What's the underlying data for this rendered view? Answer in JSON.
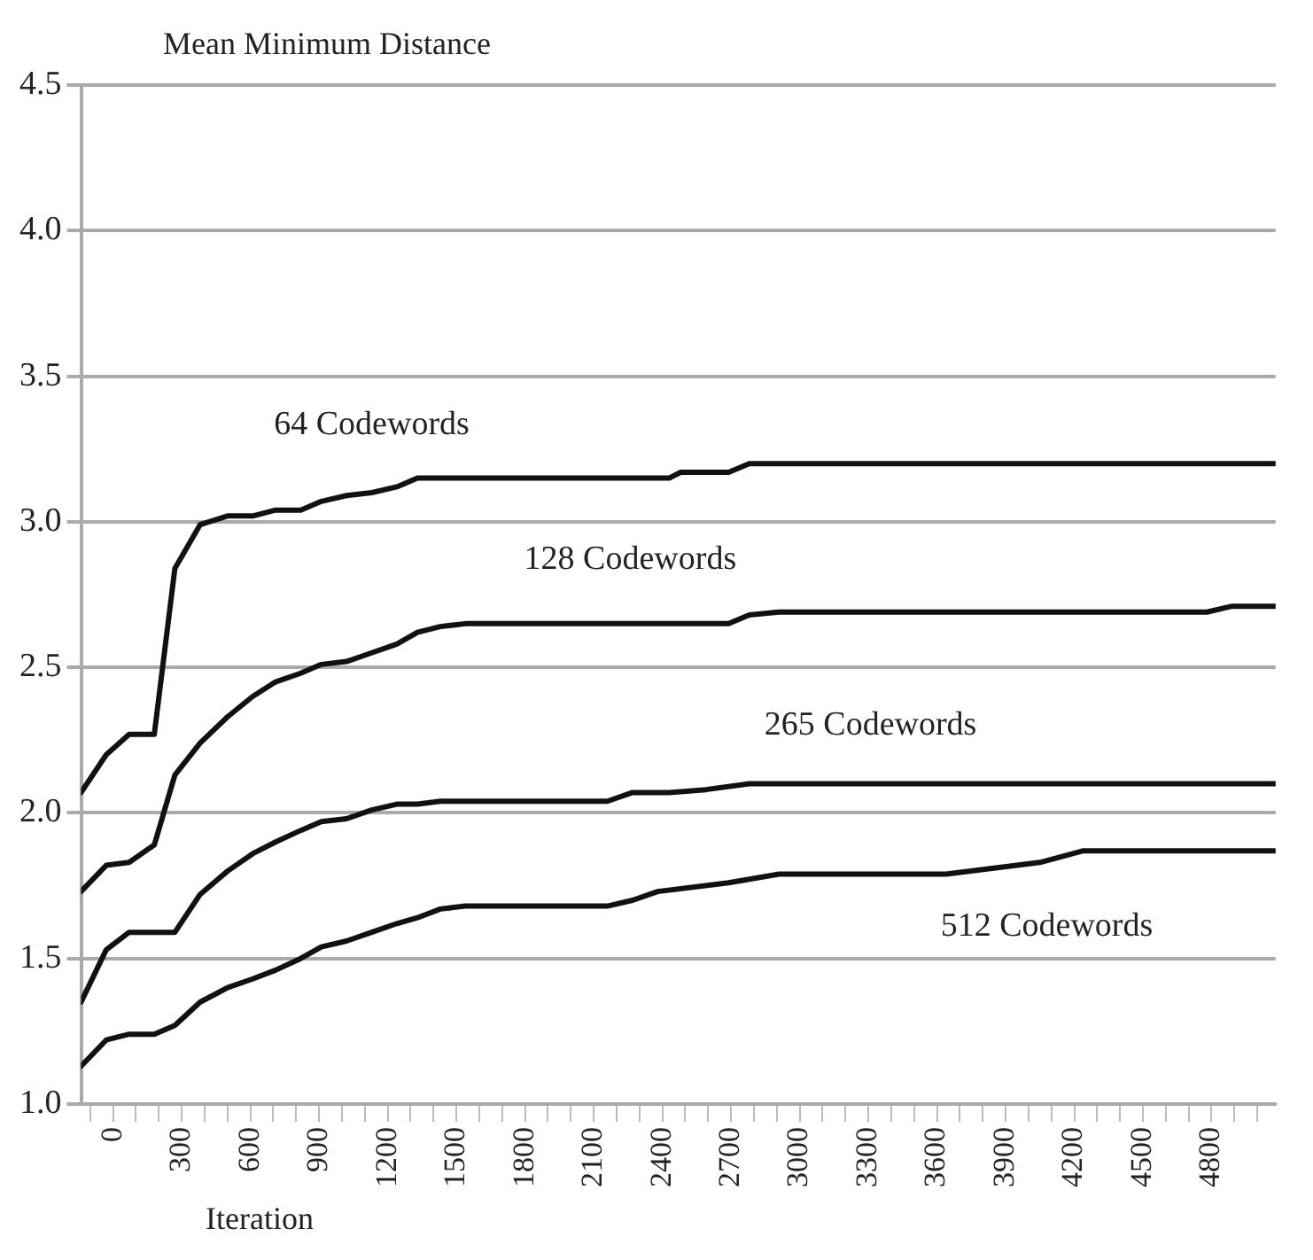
{
  "chart_data": {
    "type": "line",
    "ylabel": "Mean Minimum Distance",
    "xlabel": "Iteration",
    "xlim": [
      -140,
      5080
    ],
    "xticks": [
      {
        "value": -100,
        "label": null
      },
      0,
      {
        "value": 100,
        "label": null
      },
      {
        "value": 200,
        "label": null
      },
      300,
      {
        "value": 400,
        "label": null
      },
      {
        "value": 500,
        "label": null
      },
      600,
      {
        "value": 700,
        "label": null
      },
      {
        "value": 800,
        "label": null
      },
      900,
      {
        "value": 1000,
        "label": null
      },
      {
        "value": 1100,
        "label": null
      },
      1200,
      {
        "value": 1300,
        "label": null
      },
      {
        "value": 1400,
        "label": null
      },
      1500,
      {
        "value": 1600,
        "label": null
      },
      {
        "value": 1700,
        "label": null
      },
      1800,
      {
        "value": 1900,
        "label": null
      },
      {
        "value": 2000,
        "label": null
      },
      2100,
      {
        "value": 2200,
        "label": null
      },
      {
        "value": 2300,
        "label": null
      },
      2400,
      {
        "value": 2500,
        "label": null
      },
      {
        "value": 2600,
        "label": null
      },
      2700,
      {
        "value": 2800,
        "label": null
      },
      {
        "value": 2900,
        "label": null
      },
      3000,
      {
        "value": 3100,
        "label": null
      },
      {
        "value": 3200,
        "label": null
      },
      3300,
      {
        "value": 3400,
        "label": null
      },
      {
        "value": 3500,
        "label": null
      },
      3600,
      {
        "value": 3700,
        "label": null
      },
      {
        "value": 3800,
        "label": null
      },
      3900,
      {
        "value": 4000,
        "label": null
      },
      {
        "value": 4100,
        "label": null
      },
      4200,
      {
        "value": 4300,
        "label": null
      },
      {
        "value": 4400,
        "label": null
      },
      4500,
      {
        "value": 4600,
        "label": null
      },
      {
        "value": 4700,
        "label": null
      },
      4800,
      {
        "value": 4900,
        "label": null
      },
      {
        "value": 5000,
        "label": null
      }
    ],
    "ylim": [
      1.0,
      4.5
    ],
    "yticks": [
      {
        "value": 1,
        "label": "1.0"
      },
      1.5,
      {
        "value": 2,
        "label": "2.0"
      },
      2.5,
      {
        "value": 3,
        "label": "3.0"
      },
      3.5,
      {
        "value": 4,
        "label": "4.0"
      },
      4.5
    ],
    "grid": "y",
    "legend": false,
    "marker": "none",
    "line_style": "solid",
    "series": [
      {
        "name": "64 Codewords",
        "color": "#111111",
        "x": [
          -140,
          -30,
          70,
          180,
          270,
          380,
          500,
          610,
          710,
          820,
          910,
          1020,
          1130,
          1240,
          1330,
          2430,
          2480,
          2690,
          2780,
          5080
        ],
        "values": [
          2.07,
          2.2,
          2.27,
          2.27,
          2.84,
          2.99,
          3.02,
          3.02,
          3.04,
          3.04,
          3.07,
          3.09,
          3.1,
          3.12,
          3.15,
          3.15,
          3.17,
          3.17,
          3.2,
          3.2
        ]
      },
      {
        "name": "128 Codewords",
        "color": "#111111",
        "x": [
          -140,
          -30,
          70,
          180,
          270,
          380,
          500,
          610,
          710,
          820,
          910,
          1020,
          1130,
          1240,
          1330,
          1430,
          1540,
          2690,
          2780,
          2910,
          4780,
          4890,
          5080
        ],
        "values": [
          1.73,
          1.82,
          1.83,
          1.89,
          2.13,
          2.24,
          2.33,
          2.4,
          2.45,
          2.48,
          2.51,
          2.52,
          2.55,
          2.58,
          2.62,
          2.64,
          2.65,
          2.65,
          2.68,
          2.69,
          2.69,
          2.71,
          2.71
        ]
      },
      {
        "name": "265 Codewords",
        "color": "#111111",
        "x": [
          -140,
          -30,
          70,
          180,
          270,
          380,
          500,
          610,
          710,
          820,
          910,
          1020,
          1130,
          1240,
          1330,
          1430,
          1540,
          2160,
          2270,
          2430,
          2590,
          2780,
          5080
        ],
        "values": [
          1.35,
          1.53,
          1.59,
          1.59,
          1.59,
          1.72,
          1.8,
          1.86,
          1.9,
          1.94,
          1.97,
          1.98,
          2.01,
          2.03,
          2.03,
          2.04,
          2.04,
          2.04,
          2.07,
          2.07,
          2.08,
          2.1,
          2.1
        ]
      },
      {
        "name": "512 Codewords",
        "color": "#111111",
        "x": [
          -140,
          -30,
          70,
          180,
          270,
          380,
          500,
          610,
          710,
          820,
          910,
          1020,
          1130,
          1240,
          1330,
          1430,
          1540,
          2160,
          2270,
          2380,
          2690,
          2910,
          3640,
          4050,
          4240,
          5080
        ],
        "values": [
          1.13,
          1.22,
          1.24,
          1.24,
          1.27,
          1.35,
          1.4,
          1.43,
          1.46,
          1.5,
          1.54,
          1.56,
          1.59,
          1.62,
          1.64,
          1.67,
          1.68,
          1.68,
          1.7,
          1.73,
          1.76,
          1.79,
          1.79,
          1.83,
          1.87,
          1.87
        ]
      }
    ]
  }
}
